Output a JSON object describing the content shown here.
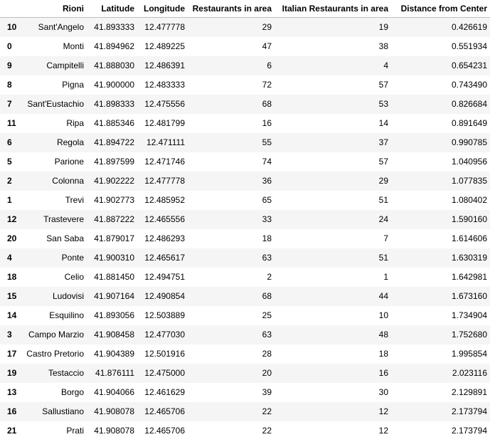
{
  "table": {
    "index_header": "",
    "columns": [
      "Rioni",
      "Latitude",
      "Longitude",
      "Restaurants in area",
      "Italian Restaurants in area",
      "Distance from Center"
    ],
    "rows": [
      {
        "index": "10",
        "cells": [
          "Sant'Angelo",
          "41.893333",
          "12.477778",
          "29",
          "19",
          "0.426619"
        ]
      },
      {
        "index": "0",
        "cells": [
          "Monti",
          "41.894962",
          "12.489225",
          "47",
          "38",
          "0.551934"
        ]
      },
      {
        "index": "9",
        "cells": [
          "Campitelli",
          "41.888030",
          "12.486391",
          "6",
          "4",
          "0.654231"
        ]
      },
      {
        "index": "8",
        "cells": [
          "Pigna",
          "41.900000",
          "12.483333",
          "72",
          "57",
          "0.743490"
        ]
      },
      {
        "index": "7",
        "cells": [
          "Sant'Eustachio",
          "41.898333",
          "12.475556",
          "68",
          "53",
          "0.826684"
        ]
      },
      {
        "index": "11",
        "cells": [
          "Ripa",
          "41.885346",
          "12.481799",
          "16",
          "14",
          "0.891649"
        ]
      },
      {
        "index": "6",
        "cells": [
          "Regola",
          "41.894722",
          "12.471111",
          "55",
          "37",
          "0.990785"
        ]
      },
      {
        "index": "5",
        "cells": [
          "Parione",
          "41.897599",
          "12.471746",
          "74",
          "57",
          "1.040956"
        ]
      },
      {
        "index": "2",
        "cells": [
          "Colonna",
          "41.902222",
          "12.477778",
          "36",
          "29",
          "1.077835"
        ]
      },
      {
        "index": "1",
        "cells": [
          "Trevi",
          "41.902773",
          "12.485952",
          "65",
          "51",
          "1.080402"
        ]
      },
      {
        "index": "12",
        "cells": [
          "Trastevere",
          "41.887222",
          "12.465556",
          "33",
          "24",
          "1.590160"
        ]
      },
      {
        "index": "20",
        "cells": [
          "San Saba",
          "41.879017",
          "12.486293",
          "18",
          "7",
          "1.614606"
        ]
      },
      {
        "index": "4",
        "cells": [
          "Ponte",
          "41.900310",
          "12.465617",
          "63",
          "51",
          "1.630319"
        ]
      },
      {
        "index": "18",
        "cells": [
          "Celio",
          "41.881450",
          "12.494751",
          "2",
          "1",
          "1.642981"
        ]
      },
      {
        "index": "15",
        "cells": [
          "Ludovisi",
          "41.907164",
          "12.490854",
          "68",
          "44",
          "1.673160"
        ]
      },
      {
        "index": "14",
        "cells": [
          "Esquilino",
          "41.893056",
          "12.503889",
          "25",
          "10",
          "1.734904"
        ]
      },
      {
        "index": "3",
        "cells": [
          "Campo Marzio",
          "41.908458",
          "12.477030",
          "63",
          "48",
          "1.752680"
        ]
      },
      {
        "index": "17",
        "cells": [
          "Castro Pretorio",
          "41.904389",
          "12.501916",
          "28",
          "18",
          "1.995854"
        ]
      },
      {
        "index": "19",
        "cells": [
          "Testaccio",
          "41.876111",
          "12.475000",
          "20",
          "16",
          "2.023116"
        ]
      },
      {
        "index": "13",
        "cells": [
          "Borgo",
          "41.904066",
          "12.461629",
          "39",
          "30",
          "2.129891"
        ]
      },
      {
        "index": "16",
        "cells": [
          "Sallustiano",
          "41.908078",
          "12.465706",
          "22",
          "12",
          "2.173794"
        ]
      },
      {
        "index": "21",
        "cells": [
          "Prati",
          "41.908078",
          "12.465706",
          "22",
          "12",
          "2.173794"
        ]
      }
    ]
  }
}
